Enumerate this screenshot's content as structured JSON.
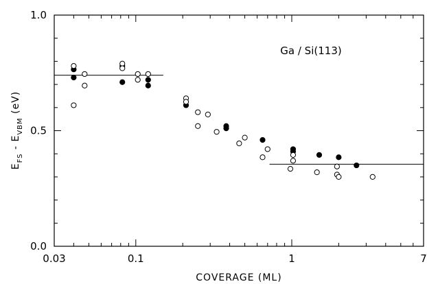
{
  "chart_data": {
    "type": "scatter",
    "xscale": "log",
    "xlim": [
      0.03,
      7
    ],
    "ylim": [
      0.0,
      1.0
    ],
    "x_ticks": [
      {
        "value": 0.03,
        "label": "0.03"
      },
      {
        "value": 0.1,
        "label": "0.1"
      },
      {
        "value": 1,
        "label": "1"
      },
      {
        "value": 7,
        "label": "7"
      }
    ],
    "y_ticks": [
      {
        "value": 0.0,
        "label": "0.0"
      },
      {
        "value": 0.5,
        "label": "0.5"
      },
      {
        "value": 1.0,
        "label": "1.0"
      }
    ],
    "xlabel": "COVERAGE (ML)",
    "ylabel": {
      "main": "E",
      "sub1": "FS",
      "mid": " - E",
      "sub2": "VBM",
      "unit": " (eV)"
    },
    "annotation": "Ga / Si(113)",
    "grid": false,
    "series": [
      {
        "marker": "filled-circle",
        "points": [
          {
            "x": 0.04,
            "y": 0.765
          },
          {
            "x": 0.04,
            "y": 0.73
          },
          {
            "x": 0.082,
            "y": 0.78
          },
          {
            "x": 0.082,
            "y": 0.71
          },
          {
            "x": 0.12,
            "y": 0.72
          },
          {
            "x": 0.12,
            "y": 0.695
          },
          {
            "x": 0.21,
            "y": 0.61
          },
          {
            "x": 0.38,
            "y": 0.52
          },
          {
            "x": 0.38,
            "y": 0.51
          },
          {
            "x": 0.65,
            "y": 0.46
          },
          {
            "x": 1.02,
            "y": 0.42
          },
          {
            "x": 1.02,
            "y": 0.41
          },
          {
            "x": 1.5,
            "y": 0.395
          },
          {
            "x": 2.0,
            "y": 0.385
          },
          {
            "x": 2.6,
            "y": 0.35
          }
        ]
      },
      {
        "marker": "open-circle",
        "points": [
          {
            "x": 0.04,
            "y": 0.78
          },
          {
            "x": 0.04,
            "y": 0.61
          },
          {
            "x": 0.047,
            "y": 0.745
          },
          {
            "x": 0.047,
            "y": 0.695
          },
          {
            "x": 0.082,
            "y": 0.79
          },
          {
            "x": 0.082,
            "y": 0.77
          },
          {
            "x": 0.103,
            "y": 0.745
          },
          {
            "x": 0.103,
            "y": 0.72
          },
          {
            "x": 0.12,
            "y": 0.745
          },
          {
            "x": 0.21,
            "y": 0.64
          },
          {
            "x": 0.21,
            "y": 0.625
          },
          {
            "x": 0.25,
            "y": 0.58
          },
          {
            "x": 0.25,
            "y": 0.52
          },
          {
            "x": 0.29,
            "y": 0.57
          },
          {
            "x": 0.33,
            "y": 0.495
          },
          {
            "x": 0.46,
            "y": 0.445
          },
          {
            "x": 0.5,
            "y": 0.47
          },
          {
            "x": 0.65,
            "y": 0.385
          },
          {
            "x": 0.7,
            "y": 0.42
          },
          {
            "x": 0.98,
            "y": 0.335
          },
          {
            "x": 1.02,
            "y": 0.395
          },
          {
            "x": 1.02,
            "y": 0.37
          },
          {
            "x": 1.45,
            "y": 0.32
          },
          {
            "x": 1.95,
            "y": 0.345
          },
          {
            "x": 1.95,
            "y": 0.31
          },
          {
            "x": 2.0,
            "y": 0.3
          },
          {
            "x": 3.3,
            "y": 0.3
          }
        ]
      }
    ],
    "reference_lines": [
      {
        "x_from": 0.03,
        "x_to": 0.15,
        "y": 0.74
      },
      {
        "x_from": 0.72,
        "x_to": 7,
        "y": 0.355
      }
    ]
  }
}
